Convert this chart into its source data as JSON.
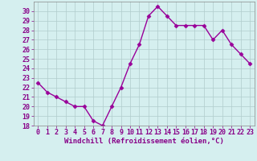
{
  "x": [
    0,
    1,
    2,
    3,
    4,
    5,
    6,
    7,
    8,
    9,
    10,
    11,
    12,
    13,
    14,
    15,
    16,
    17,
    18,
    19,
    20,
    21,
    22,
    23
  ],
  "y": [
    22.5,
    21.5,
    21.0,
    20.5,
    20.0,
    20.0,
    18.5,
    18.0,
    20.0,
    22.0,
    24.5,
    26.5,
    29.5,
    30.5,
    29.5,
    28.5,
    28.5,
    28.5,
    28.5,
    27.0,
    28.0,
    26.5,
    25.5,
    24.5
  ],
  "line_color": "#990099",
  "marker": "D",
  "marker_size": 2.5,
  "xlabel": "Windchill (Refroidissement éolien,°C)",
  "xlim": [
    -0.5,
    23.5
  ],
  "ylim": [
    18,
    31
  ],
  "yticks": [
    18,
    19,
    20,
    21,
    22,
    23,
    24,
    25,
    26,
    27,
    28,
    29,
    30
  ],
  "xticks": [
    0,
    1,
    2,
    3,
    4,
    5,
    6,
    7,
    8,
    9,
    10,
    11,
    12,
    13,
    14,
    15,
    16,
    17,
    18,
    19,
    20,
    21,
    22,
    23
  ],
  "bg_color": "#d5efef",
  "grid_color": "#b0cccc",
  "label_color": "#880088",
  "tick_color": "#880088",
  "xlabel_fontsize": 6.5,
  "tick_fontsize": 6.0,
  "linewidth": 1.0
}
